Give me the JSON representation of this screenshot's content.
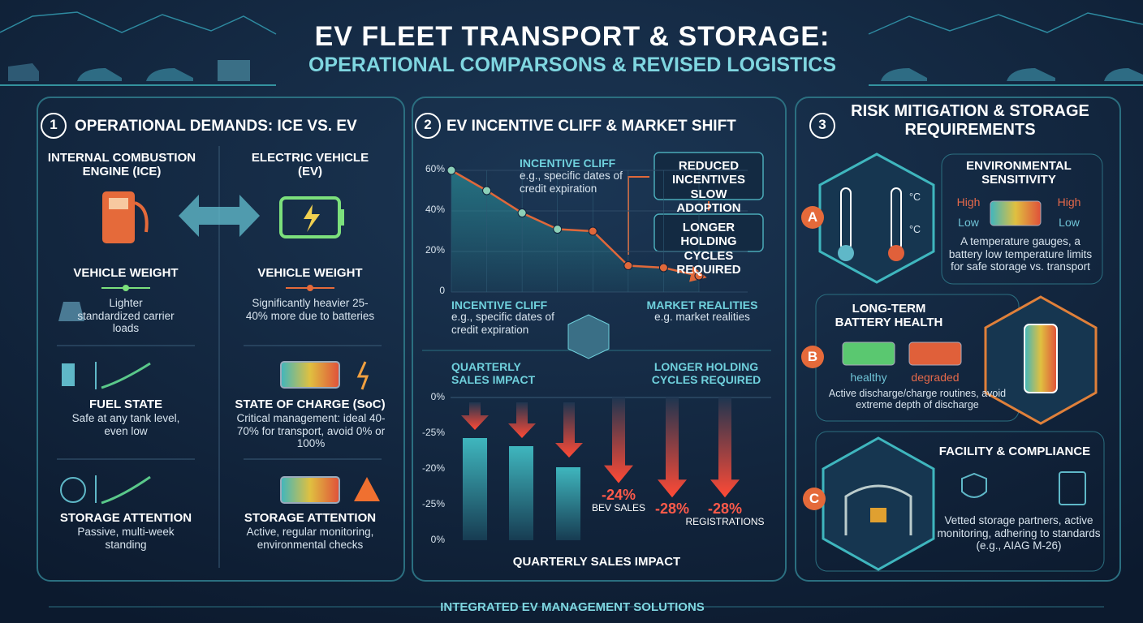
{
  "header": {
    "title": "EV FLEET TRANSPORT & STORAGE:",
    "subtitle": "OPERATIONAL COMPARSONS & REVISED LOGISTICS"
  },
  "panel1": {
    "number": "1",
    "title": "OPERATIONAL DEMANDS: ICE VS. EV",
    "ice": {
      "heading": "INTERNAL COMBUSTION ENGINE (ICE)",
      "rows": [
        {
          "label": "VEHICLE WEIGHT",
          "text": "Lighter standardized carrier loads"
        },
        {
          "label": "FUEL STATE",
          "text": "Safe at any tank level, even low"
        },
        {
          "label": "STORAGE ATTENTION",
          "text": "Passive, multi-week standing"
        }
      ]
    },
    "ev": {
      "heading": "ELECTRIC VEHICLE (EV)",
      "rows": [
        {
          "label": "VEHICLE WEIGHT",
          "text": "Significantly heavier 25-40% more due to batteries"
        },
        {
          "label": "STATE OF CHARGE (SoC)",
          "text": "Critical management: ideal 40-70% for transport, avoid 0% or 100%"
        },
        {
          "label": "STORAGE ATTENTION",
          "text": "Active, regular monitoring, environmental checks"
        }
      ]
    }
  },
  "panel2": {
    "number": "2",
    "title": "EV INCENTIVE CLIFF & MARKET SHIFT",
    "cliff_top": {
      "title": "INCENTIVE CLIFF",
      "text": "e.g., specific dates of credit expiration"
    },
    "box_1": "REDUCED INCENTIVES SLOW ADOPTION",
    "box_2": "LONGER HOLDING CYCLES REQUIRED",
    "cliff_bottom": {
      "title": "INCENTIVE CLIFF",
      "text": "e.g., specific dates of credit expiration"
    },
    "market": {
      "title": "MARKET REALITIES",
      "text": "e.g. market realities"
    },
    "sales_heading": "QUARTERLY SALES IMPACT",
    "holding_heading": "LONGER HOLDING CYCLES REQUIRED",
    "sales_axis_labels": [
      "0%",
      "-25%",
      "-20%",
      "-25%",
      "0%"
    ],
    "sales_x_label": "QUARTERLY SALES IMPACT"
  },
  "panel3": {
    "number": "3",
    "title": "RISK MITIGATION & STORAGE REQUIREMENTS",
    "a": {
      "letter": "A",
      "title": "ENVIRONMENTAL SENSITIVITY",
      "unit_top": "°C",
      "unit_bottom": "°C",
      "high_left": "High",
      "low_left": "Low",
      "high_right": "High",
      "low_right": "Low",
      "text": "A temperature gauges, a battery low temperature limits for safe storage vs. transport"
    },
    "b": {
      "letter": "B",
      "title": "LONG-TERM BATTERY HEALTH",
      "healthy": "healthy",
      "degraded": "degraded",
      "text": "Active discharge/charge routines, avoid extreme depth of discharge"
    },
    "c": {
      "letter": "C",
      "title": "FACILITY & COMPLIANCE",
      "text": "Vetted storage partners, active monitoring, adhering to standards (e.g., AIAG M-26)"
    }
  },
  "footer": "INTEGRATED EV MANAGEMENT SOLUTIONS",
  "chart_data": [
    {
      "type": "line",
      "categories": [
        null,
        null,
        null,
        null,
        null,
        null,
        null,
        null
      ],
      "values": [
        60,
        50,
        39,
        31,
        30,
        13,
        12,
        8
      ],
      "color": "#e0683a",
      "area_color": "#2a8c96",
      "ylim": [
        0,
        60
      ],
      "yticks": [
        0,
        {
          "value": 20,
          "label": "20%"
        },
        {
          "value": 40,
          "label": "40%"
        },
        {
          "value": 60,
          "label": "60%"
        }
      ]
    },
    {
      "type": "bar",
      "categories": [
        "BEV SALES",
        null,
        "REGISTRATIONS"
      ],
      "values": [
        -24,
        -28,
        -28
      ],
      "value_labels": [
        "-24%",
        "-28%",
        "-28%"
      ],
      "color": "#e8402f",
      "ylim": [
        -40,
        0
      ]
    }
  ]
}
